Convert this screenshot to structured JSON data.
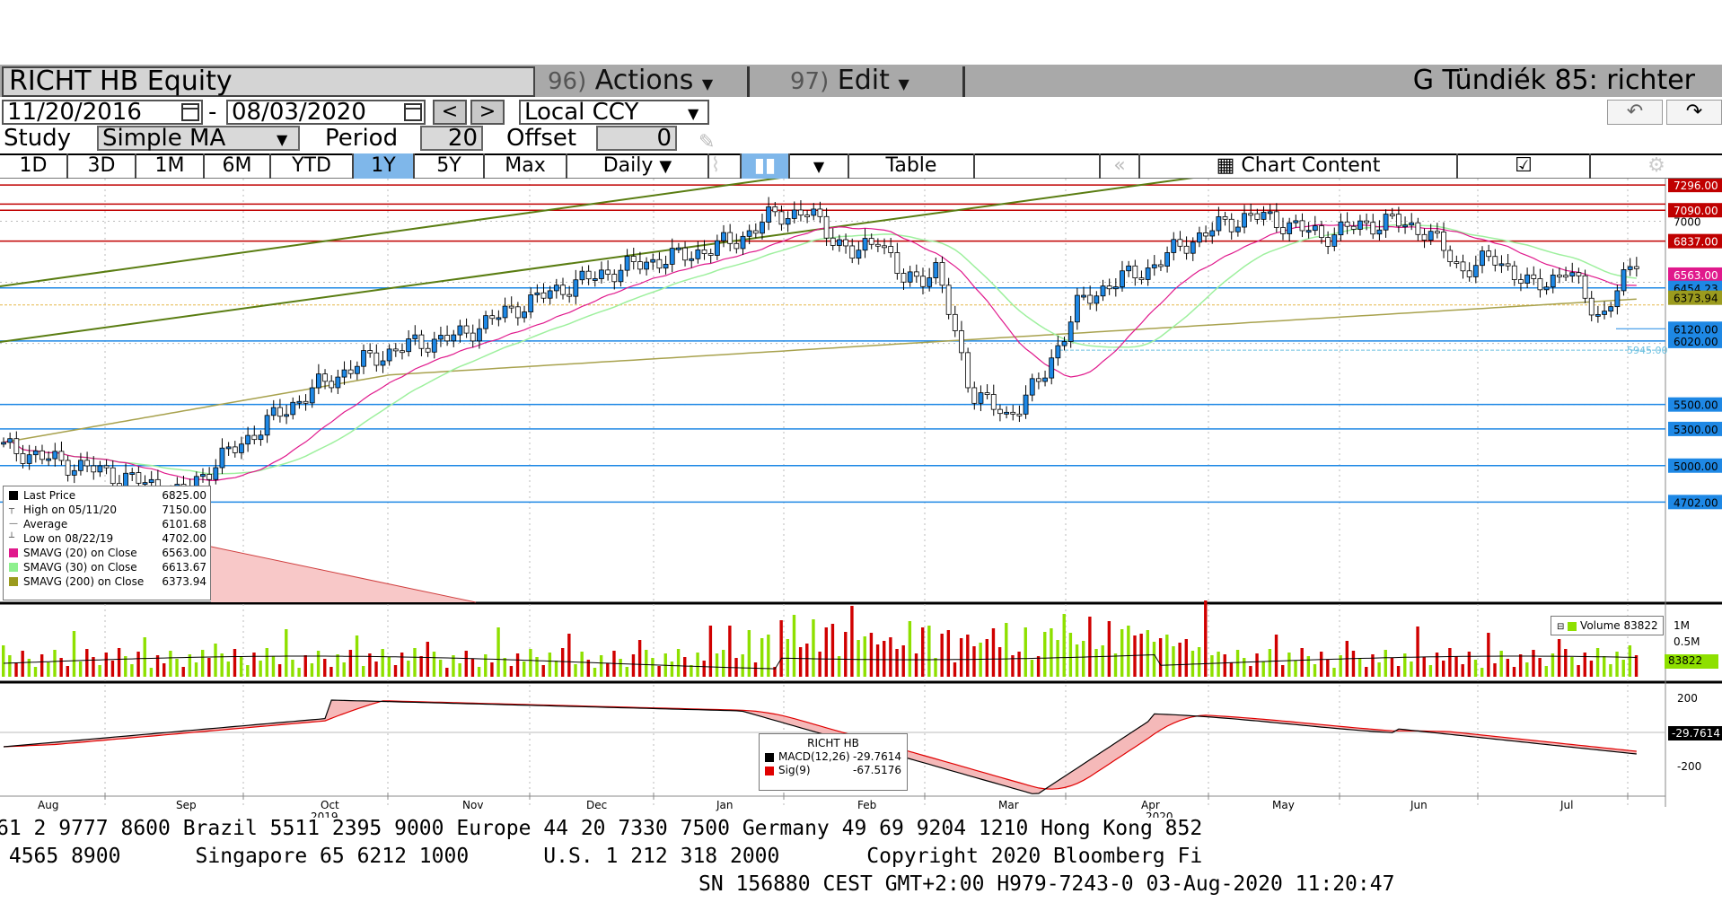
{
  "header": {
    "ticker": "RICHT HB Equity",
    "actions_num": "96)",
    "actions_label": "Actions",
    "edit_num": "97)",
    "edit_label": "Edit",
    "user_title": "G Tündiék 85: richter"
  },
  "date_range": {
    "start": "11/20/2016",
    "separator": "-",
    "end": "08/03/2020",
    "prev_label": "<",
    "next_label": ">",
    "currency": "Local CCY"
  },
  "study": {
    "label": "Study",
    "value": "Simple MA",
    "period_label": "Period",
    "period_value": "20",
    "offset_label": "Offset",
    "offset_value": "0"
  },
  "tabs": [
    "1D",
    "3D",
    "1M",
    "6M",
    "YTD",
    "1Y",
    "5Y",
    "Max"
  ],
  "active_tab": "1Y",
  "frequency": "Daily",
  "table_label": "Table",
  "chart_content_label": "Chart Content",
  "icons": {
    "calendar": "calendar-icon",
    "undo": "undo-icon",
    "redo": "redo-icon",
    "pencil": "pencil-icon",
    "line_chart": "line-chart-icon",
    "candle_chart": "candlestick-icon",
    "chart_content": "chart-content-icon",
    "edit_chart": "edit-chart-icon",
    "gear": "gear-icon",
    "rewind": "rewind-icon"
  },
  "legend": {
    "items": [
      {
        "name": "Last Price",
        "value": "6825.00",
        "color": "#000000"
      },
      {
        "name": "High on 05/11/20",
        "value": "7150.00",
        "color": ""
      },
      {
        "name": "Average",
        "value": "6101.68",
        "color": ""
      },
      {
        "name": "Low on 08/22/19",
        "value": "4702.00",
        "color": ""
      },
      {
        "name": "SMAVG (20)  on Close",
        "value": "6563.00",
        "color": "#e0198c"
      },
      {
        "name": "SMAVG (30)  on Close",
        "value": "6613.67",
        "color": "#8ef08e"
      },
      {
        "name": "SMAVG (200)  on Close",
        "value": "6373.94",
        "color": "#9b9b1e"
      }
    ]
  },
  "price_axis": {
    "labels": [
      "7296.00",
      "7090.00",
      "7000",
      "6837.00",
      "6563.00",
      "6454.23",
      "6373.94",
      "6120.00",
      "6020.00",
      "5500.00",
      "5300.00",
      "5000.00",
      "4702.00"
    ],
    "note": "5945.00"
  },
  "volume": {
    "legend_label": "Volume",
    "legend_value": "83822",
    "axis_labels": [
      "1M",
      "0.5M",
      "83822"
    ]
  },
  "macd": {
    "title": "RICHT HB",
    "macd_label": "MACD(12,26)",
    "macd_value": "-29.7614",
    "sig_label": "Sig(9)",
    "sig_value": "-67.5176",
    "axis_labels": [
      "200",
      "-29.7614",
      "-200"
    ]
  },
  "x_axis": {
    "months": [
      "Aug",
      "Sep",
      "Oct",
      "Nov",
      "Dec",
      "Jan",
      "Feb",
      "Mar",
      "Apr",
      "May",
      "Jun",
      "Jul"
    ],
    "years": [
      "2019",
      "2020"
    ]
  },
  "footer": {
    "line1": "61 2 9777 8600 Brazil 5511 2395 9000 Europe 44 20 7330 7500 Germany 49 69 9204 1210 Hong Kong 852",
    "line2": " 4565 8900      Singapore 65 6212 1000      U.S. 1 212 318 2000       Copyright 2020 Bloomberg Fi",
    "line3": "SN 156880 CEST GMT+2:00 H979-7243-0 03-Aug-2020 11:20:47"
  },
  "colors": {
    "accent_tab": "#7fb7ea",
    "up_candle": "#1e88e5",
    "down_candle": "#000000",
    "volume_up": "#8ee000",
    "volume_down": "#d00000",
    "resistance_line": "#c00000",
    "support_line": "#1e88e5",
    "trend_line": "#5a7d12"
  }
}
